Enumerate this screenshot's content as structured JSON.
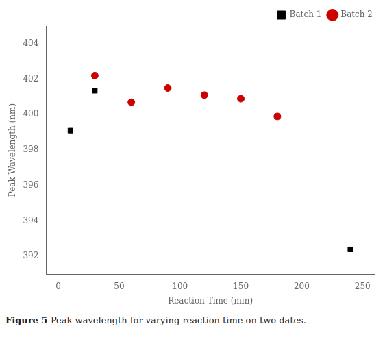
{
  "chart_data": {
    "type": "scatter",
    "xlabel": "Reaction Time (min)",
    "ylabel": "Peak Wavelength (nm)",
    "annotations": [
      "Figure 5",
      "Peak wavelength for varying reaction time on two dates."
    ],
    "series": [
      {
        "name": "Batch 1",
        "color": "#000000",
        "marker": "square",
        "x": [
          10,
          30,
          240
        ],
        "values": [
          399.1,
          401.35,
          392.4
        ]
      },
      {
        "name": "Batch 2",
        "color": "#cc0000",
        "marker": "circle",
        "x": [
          30,
          60,
          90,
          120,
          150,
          180
        ],
        "values": [
          402.2,
          400.7,
          401.5,
          401.1,
          400.9,
          399.9
        ]
      }
    ],
    "xlim": [
      -10,
      260
    ],
    "ylim": [
      391,
      405
    ],
    "xticks": [
      0,
      50,
      100,
      150,
      200,
      250
    ],
    "yticks": [
      392,
      394,
      396,
      398,
      400,
      402,
      404
    ],
    "grid": false,
    "legend": "upper right"
  }
}
